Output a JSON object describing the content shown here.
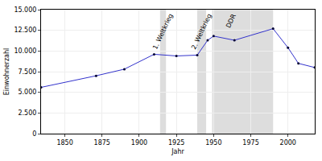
{
  "chart_data": {
    "type": "line",
    "x_label": "Jahr",
    "y_label": "Einwohnerzahl",
    "x": [
      1834,
      1871,
      1890,
      1910,
      1925,
      1939,
      1946,
      1950,
      1964,
      1990,
      2000,
      2007,
      2018
    ],
    "values": [
      5600,
      7000,
      7800,
      9600,
      9400,
      9500,
      11300,
      11800,
      11300,
      12700,
      10400,
      8500,
      8000
    ],
    "color": "#3333cc",
    "marker": "circle",
    "xlim": [
      1834,
      2018
    ],
    "xticks": [
      1850,
      1875,
      1900,
      1925,
      1950,
      1975,
      2000
    ],
    "ylim": [
      0,
      15000
    ],
    "yticks": [
      0,
      {
        "value": 2500,
        "label": "2.500"
      },
      {
        "value": 5000,
        "label": "5.000"
      },
      {
        "value": 7500,
        "label": "7.500"
      },
      {
        "value": 10000,
        "label": "10.000"
      },
      {
        "value": 12500,
        "label": "12.500"
      },
      {
        "value": 15000,
        "label": "15.000"
      }
    ],
    "grid": true,
    "periods": [
      {
        "label": "1. Weltkrieg",
        "start": 1914,
        "end": 1918
      },
      {
        "label": "2. Weltkrieg",
        "start": 1939,
        "end": 1945
      },
      {
        "label": "DDR",
        "start": 1949,
        "end": 1990
      }
    ]
  }
}
